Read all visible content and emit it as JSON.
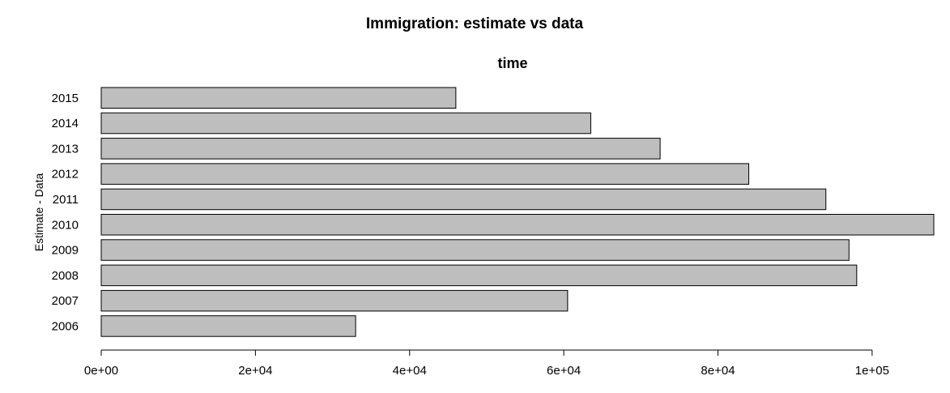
{
  "chart_data": {
    "type": "bar",
    "orientation": "horizontal",
    "title": "Immigration: estimate vs data",
    "subtitle": "time",
    "xlabel": "",
    "ylabel": "Estimate - Data",
    "categories": [
      "2006",
      "2007",
      "2008",
      "2009",
      "2010",
      "2011",
      "2012",
      "2013",
      "2014",
      "2015"
    ],
    "values": [
      33000,
      60500,
      98000,
      97000,
      108000,
      94000,
      84000,
      72500,
      63500,
      46000
    ],
    "xlim": [
      0,
      108000
    ],
    "x_ticks": [
      0,
      20000,
      40000,
      60000,
      80000,
      100000
    ],
    "x_tick_labels": [
      "0e+00",
      "2e+04",
      "4e+04",
      "6e+04",
      "8e+04",
      "1e+05"
    ],
    "grid": false,
    "legend": "none",
    "bar_color": "#bebebe",
    "bar_border_color": "#000000"
  }
}
